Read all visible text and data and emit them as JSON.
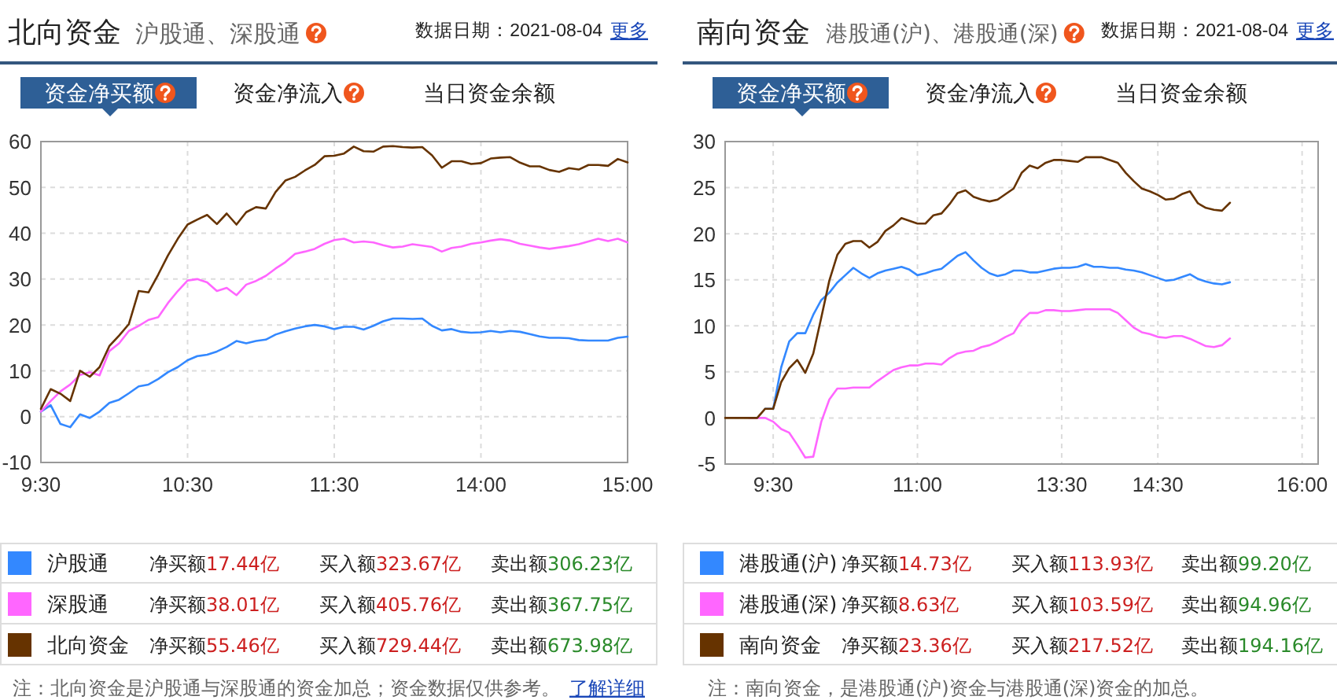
{
  "chart_data": [
    {
      "type": "line",
      "title": "北向资金",
      "subtitle": "沪股通、深股通",
      "categories": [
        "9:30",
        null,
        null,
        null,
        null,
        null,
        null,
        null,
        null,
        null,
        null,
        null,
        null,
        null,
        null,
        "10:30",
        null,
        null,
        null,
        null,
        null,
        null,
        null,
        null,
        null,
        null,
        null,
        null,
        null,
        null,
        "11:30",
        null,
        null,
        null,
        null,
        null,
        null,
        null,
        null,
        null,
        null,
        null,
        null,
        null,
        null,
        "14:00",
        null,
        null,
        null,
        null,
        null,
        null,
        null,
        null,
        null,
        null,
        null,
        null,
        null,
        null,
        "15:00"
      ],
      "ylim": [
        -10,
        60
      ],
      "yticks": [
        -10,
        0,
        10,
        20,
        30,
        40,
        50,
        60
      ],
      "grid": true,
      "legend": "bottom",
      "series": [
        {
          "name": "沪股通",
          "color": "#3388ff",
          "values": [
            1.1,
            2.5,
            -1.6,
            -2.3,
            0.5,
            -0.3,
            1.1,
            3.0,
            3.7,
            5.1,
            6.6,
            7.0,
            8.2,
            9.7,
            10.8,
            12.3,
            13.2,
            13.5,
            14.2,
            15.2,
            16.5,
            16.0,
            16.5,
            16.8,
            17.9,
            18.6,
            19.2,
            19.7,
            20.0,
            19.7,
            19.1,
            19.6,
            19.6,
            19.0,
            19.8,
            20.8,
            21.4,
            21.4,
            21.3,
            21.4,
            19.8,
            18.8,
            19.1,
            18.5,
            18.3,
            18.4,
            18.7,
            18.4,
            18.7,
            18.5,
            18.0,
            17.5,
            17.2,
            17.2,
            17.1,
            16.7,
            16.6,
            16.6,
            16.6,
            17.2,
            17.44
          ]
        },
        {
          "name": "深股通",
          "color": "#ff66ff",
          "values": [
            1.1,
            3.4,
            5.5,
            7.0,
            9.1,
            9.7,
            9.0,
            14.3,
            16.0,
            18.7,
            19.8,
            21.1,
            21.7,
            24.8,
            27.4,
            29.7,
            30.0,
            29.3,
            27.4,
            28.1,
            26.5,
            28.8,
            29.6,
            30.7,
            32.3,
            33.7,
            35.5,
            36.0,
            36.6,
            37.7,
            38.5,
            38.8,
            38.0,
            38.2,
            38.0,
            37.4,
            36.9,
            37.1,
            37.6,
            37.3,
            37.0,
            36.0,
            36.8,
            37.1,
            37.7,
            38.0,
            38.4,
            38.7,
            38.4,
            37.7,
            37.3,
            36.9,
            36.6,
            36.9,
            37.2,
            37.6,
            38.2,
            38.8,
            38.3,
            38.8,
            38.01
          ]
        },
        {
          "name": "北向资金",
          "color": "#663300",
          "values": [
            1.7,
            6.0,
            5.0,
            3.4,
            10.0,
            8.7,
            10.8,
            15.4,
            17.7,
            20.2,
            27.4,
            27.1,
            31.0,
            35.2,
            38.8,
            41.9,
            43.0,
            44.0,
            42.0,
            44.3,
            41.9,
            44.6,
            45.7,
            45.4,
            49.0,
            51.5,
            52.3,
            53.7,
            54.9,
            56.8,
            56.9,
            57.4,
            58.9,
            57.9,
            57.8,
            58.9,
            59.0,
            58.8,
            58.7,
            58.8,
            57.0,
            54.3,
            55.7,
            55.7,
            55.1,
            55.3,
            56.3,
            56.5,
            56.6,
            55.4,
            54.6,
            54.6,
            53.8,
            53.4,
            54.2,
            53.9,
            54.9,
            54.9,
            54.7,
            56.2,
            55.46
          ]
        }
      ],
      "annotations": [
        "数据日期：2021-08-04",
        "更多",
        "资金净买额",
        "资金净流入",
        "当日资金余额",
        "净买额17.44亿",
        "买入额323.67亿",
        "卖出额306.23亿",
        "净买额38.01亿",
        "买入额405.76亿",
        "卖出额367.75亿",
        "净买额55.46亿",
        "买入额729.44亿",
        "卖出额673.98亿",
        "注：北向资金是沪股通与深股通的资金加总；资金数据仅供参考。",
        "了解详细"
      ]
    },
    {
      "type": "line",
      "title": "南向资金",
      "subtitle": "港股通(沪)、港股通(深)",
      "categories": [
        null,
        null,
        null,
        null,
        null,
        null,
        "9:30",
        null,
        null,
        null,
        null,
        null,
        null,
        null,
        null,
        null,
        null,
        null,
        null,
        null,
        null,
        null,
        null,
        null,
        "11:00",
        null,
        null,
        null,
        null,
        null,
        null,
        null,
        null,
        null,
        null,
        null,
        null,
        null,
        null,
        null,
        null,
        null,
        "13:30",
        null,
        null,
        null,
        null,
        null,
        null,
        null,
        null,
        null,
        null,
        null,
        "14:30",
        null,
        null,
        null,
        null,
        null,
        null,
        null,
        null,
        null,
        null,
        null,
        null,
        null,
        null,
        null,
        null,
        null,
        "16:00",
        null,
        null
      ],
      "ylim": [
        -5,
        30
      ],
      "yticks": [
        -5,
        0,
        5,
        10,
        15,
        20,
        25,
        30
      ],
      "grid": true,
      "legend": "bottom",
      "series": [
        {
          "name": "港股通(沪)",
          "color": "#3388ff",
          "values": [
            null,
            null,
            null,
            null,
            null,
            1.0,
            1.0,
            5.5,
            8.3,
            9.2,
            9.2,
            11.2,
            12.8,
            13.6,
            14.7,
            15.5,
            16.3,
            15.7,
            15.2,
            15.7,
            16.0,
            16.2,
            16.4,
            16.1,
            15.5,
            15.7,
            16.0,
            16.2,
            16.9,
            17.6,
            18.0,
            17.1,
            16.3,
            15.7,
            15.4,
            15.6,
            16.0,
            16.0,
            15.8,
            15.8,
            16.0,
            16.2,
            16.3,
            16.3,
            16.4,
            16.7,
            16.4,
            16.4,
            16.3,
            16.3,
            16.1,
            16.0,
            15.8,
            15.5,
            15.2,
            14.9,
            15.0,
            15.3,
            15.6,
            15.1,
            14.8,
            14.6,
            14.5,
            14.73,
            null,
            null,
            null,
            null,
            null,
            null,
            null,
            null,
            null,
            null,
            null
          ]
        },
        {
          "name": "港股通(深)",
          "color": "#ff66ff",
          "values": [
            null,
            null,
            null,
            0,
            0,
            0,
            -0.4,
            -1.2,
            -1.6,
            -2.9,
            -4.3,
            -4.2,
            -0.4,
            2.0,
            3.2,
            3.2,
            3.3,
            3.3,
            3.3,
            4.0,
            4.6,
            5.2,
            5.5,
            5.7,
            5.7,
            5.9,
            5.9,
            5.8,
            6.5,
            7.0,
            7.2,
            7.3,
            7.7,
            7.9,
            8.3,
            8.8,
            9.2,
            10.6,
            11.4,
            11.4,
            11.7,
            11.7,
            11.6,
            11.6,
            11.7,
            11.8,
            11.8,
            11.8,
            11.8,
            11.4,
            10.6,
            9.8,
            9.3,
            9.1,
            8.8,
            8.7,
            8.9,
            8.9,
            8.6,
            8.2,
            7.8,
            7.7,
            7.9,
            8.63,
            null,
            null,
            null,
            null,
            null,
            null,
            null,
            null,
            null,
            null,
            null
          ]
        },
        {
          "name": "南向资金",
          "color": "#663300",
          "values": [
            0,
            0,
            0,
            0,
            0,
            1.0,
            1.0,
            3.9,
            5.4,
            6.3,
            4.9,
            7.0,
            10.9,
            14.9,
            17.7,
            18.9,
            19.2,
            19.2,
            18.5,
            19.1,
            20.3,
            20.9,
            21.7,
            21.4,
            21.1,
            21.1,
            22.0,
            22.2,
            23.2,
            24.4,
            24.7,
            24.0,
            23.7,
            23.5,
            23.7,
            24.3,
            24.9,
            26.6,
            27.4,
            27.1,
            27.7,
            28.0,
            28.0,
            27.9,
            27.8,
            28.3,
            28.3,
            28.3,
            28.0,
            27.7,
            26.6,
            25.7,
            24.9,
            24.6,
            24.2,
            23.7,
            23.8,
            24.3,
            24.6,
            23.3,
            22.8,
            22.6,
            22.5,
            23.36,
            null,
            null,
            null,
            null,
            null,
            null,
            null,
            null,
            null,
            null,
            null
          ]
        }
      ],
      "annotations": [
        "数据日期：2021-08-04",
        "更多",
        "资金净买额",
        "资金净流入",
        "当日资金余额",
        "净买额14.73亿",
        "买入额113.93亿",
        "卖出额99.20亿",
        "净买额8.63亿",
        "买入额103.59亿",
        "卖出额94.96亿",
        "净买额23.36亿",
        "买入额217.52亿",
        "卖出额194.16亿",
        "注：南向资金，是港股通(沪)资金与港股通(深)资金的加总。"
      ]
    }
  ]
}
